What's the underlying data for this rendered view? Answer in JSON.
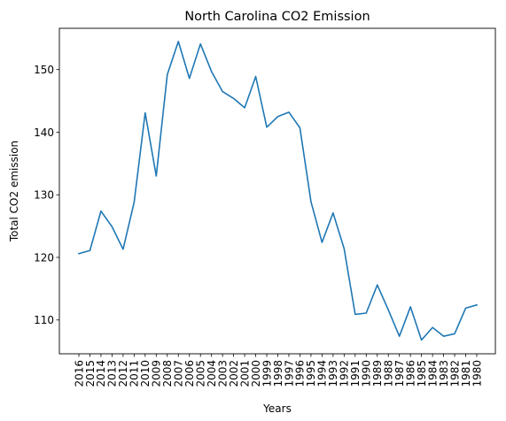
{
  "chart_data": {
    "type": "line",
    "title": "North Carolina CO2 Emission",
    "xlabel": "Years",
    "ylabel": "Total CO2 emission",
    "categories": [
      "2016",
      "2015",
      "2014",
      "2013",
      "2012",
      "2011",
      "2010",
      "2009",
      "2008",
      "2007",
      "2006",
      "2005",
      "2004",
      "2003",
      "2002",
      "2001",
      "2000",
      "1999",
      "1998",
      "1997",
      "1996",
      "1995",
      "1994",
      "1993",
      "1992",
      "1991",
      "1990",
      "1989",
      "1988",
      "1987",
      "1986",
      "1985",
      "1984",
      "1983",
      "1982",
      "1981",
      "1980"
    ],
    "series": [
      {
        "values": [
          120.6,
          121.1,
          127.4,
          124.9,
          121.3,
          128.8,
          143.1,
          133.0,
          149.2,
          154.5,
          148.6,
          154.1,
          149.7,
          146.5,
          145.4,
          143.9,
          148.9,
          140.8,
          142.5,
          143.2,
          140.7,
          128.9,
          122.4,
          127.1,
          121.4,
          110.9,
          111.1,
          115.6,
          111.6,
          107.4,
          112.1,
          106.8,
          108.8,
          107.4,
          107.8,
          111.9,
          112.4
        ],
        "color": "#1f77b4"
      }
    ],
    "yticks": [
      110,
      120,
      130,
      140,
      150
    ],
    "ylim": [
      104.6,
      156.6
    ],
    "grid": false,
    "legend": "none"
  }
}
